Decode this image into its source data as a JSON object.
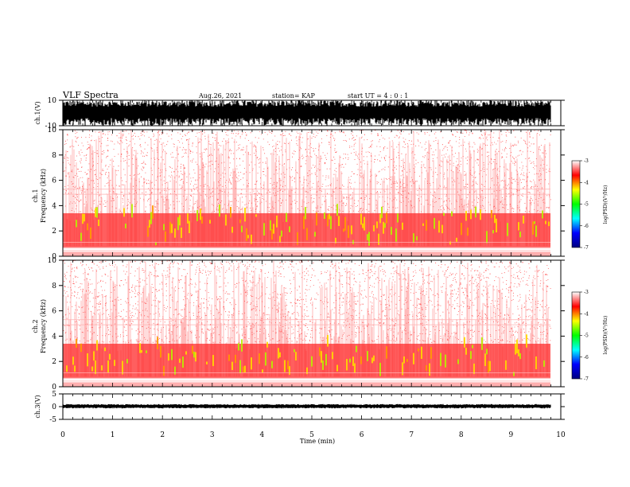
{
  "header": {
    "title": "VLF Spectra",
    "date": "Aug.26, 2021",
    "station": "station= KAP",
    "start": "start  UT =   4 : 0  : 1"
  },
  "chart_data": [
    {
      "type": "line",
      "panel": "ch1-waveform",
      "ylabel": "ch.1(V)",
      "ylim": [
        -10,
        10
      ],
      "yticks": [
        "10",
        "-10"
      ],
      "xlim": [
        0,
        10
      ],
      "note": "dense saturated waveform"
    },
    {
      "type": "heatmap",
      "panel": "ch1-spectrogram",
      "ylabel": "ch.1\nFrequency (kHz)",
      "ylabel_lines": [
        "ch.1",
        "Frequency  (kHz)"
      ],
      "ylim": [
        0,
        10
      ],
      "yticks": [
        "0",
        "2",
        "4",
        "6",
        "8",
        "10"
      ],
      "xlim": [
        0,
        10
      ],
      "colorbar": {
        "label": "log(PSD)(V²/Hz)",
        "range": [
          -7,
          -3
        ],
        "ticks": [
          "-3",
          "-4",
          "-5",
          "-6",
          "-7"
        ],
        "colors": [
          "#000080",
          "#0000ff",
          "#00ffff",
          "#00ff00",
          "#ffff00",
          "#ff0000",
          "#ffffff"
        ]
      }
    },
    {
      "type": "heatmap",
      "panel": "ch2-spectrogram",
      "ylabel": "ch.2\nFrequency (kHz)",
      "ylabel_lines": [
        "ch.2",
        "Frequency  (kHz)"
      ],
      "ylim": [
        0,
        10
      ],
      "yticks": [
        "0",
        "2",
        "4",
        "6",
        "8",
        "10"
      ],
      "xlim": [
        0,
        10
      ],
      "colorbar": {
        "label": "log(PSD)(V²/Hz)",
        "range": [
          -7,
          -3
        ],
        "ticks": [
          "-3",
          "-4",
          "-5",
          "-6",
          "-7"
        ],
        "colors": [
          "#000080",
          "#0000ff",
          "#00ffff",
          "#00ff00",
          "#ffff00",
          "#ff0000",
          "#ffffff"
        ]
      }
    },
    {
      "type": "line",
      "panel": "ch3-waveform",
      "ylabel": "ch.3(V)",
      "ylim": [
        -5,
        5
      ],
      "yticks": [
        "5",
        "0",
        "-5"
      ],
      "xlabel": "Time  (min)",
      "xlim": [
        0,
        10
      ],
      "xticks": [
        "0",
        "1",
        "2",
        "3",
        "4",
        "5",
        "6",
        "7",
        "8",
        "9",
        "10"
      ]
    }
  ]
}
